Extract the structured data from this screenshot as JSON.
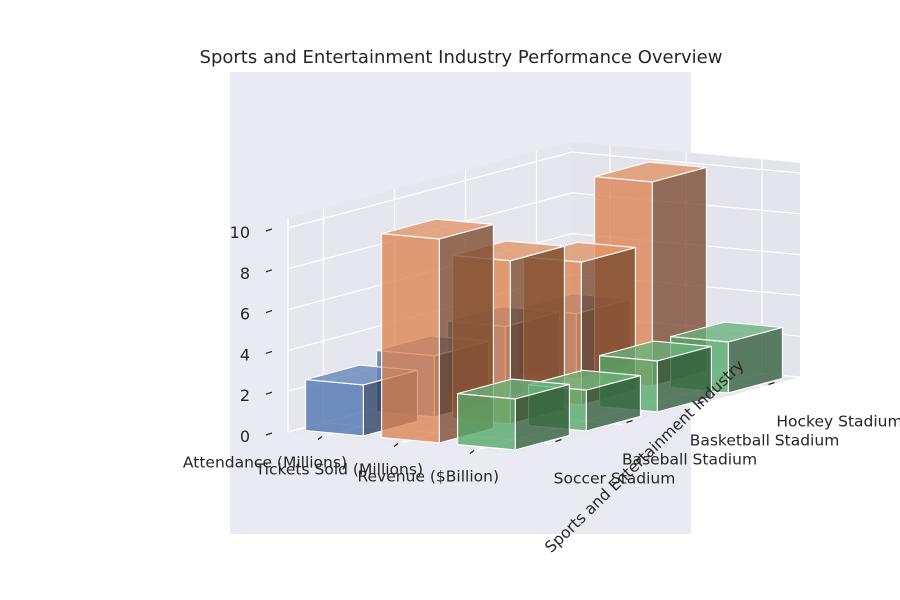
{
  "chart_data": {
    "type": "bar3d",
    "title": "Sports and Entertainment Industry Performance Overview",
    "xlabel": "",
    "ylabel": "Sports and Entertainment Industry",
    "zlabel": "",
    "x_categories": [
      "Attendance (Millions)",
      "Tickets Sold (Millions)",
      "Revenue ($Billion)"
    ],
    "y_categories": [
      "Soccer Stadium",
      "Baseball Stadium",
      "Basketball Stadium",
      "Hockey Stadium"
    ],
    "zlim": [
      0,
      10
    ],
    "z_ticks": [
      0,
      2,
      4,
      6,
      8,
      10
    ],
    "series": [
      {
        "name": "Attendance (Millions)",
        "color": "#4c72b0",
        "values": [
          2.5,
          3.0,
          3.5,
          3.2
        ]
      },
      {
        "name": "Tickets Sold (Millions)",
        "color": "#dd8452",
        "values": [
          10.0,
          8.0,
          7.0,
          10.0
        ]
      },
      {
        "name": "Revenue ($Billion)",
        "color": "#55a868",
        "values": [
          2.5,
          2.0,
          2.5,
          2.5
        ]
      }
    ],
    "grid": true
  }
}
